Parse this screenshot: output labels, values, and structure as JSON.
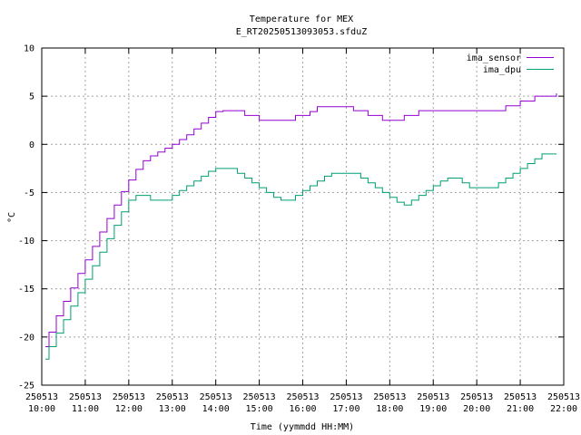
{
  "chart_data": {
    "type": "line",
    "title": "Temperature for MEX",
    "subtitle": "E_RT20250513093053.sfduZ",
    "xlabel": "Time (yymmdd HH:MM)",
    "ylabel": "°C",
    "xlim": [
      "10:00",
      "22:00"
    ],
    "ylim": [
      -25,
      10
    ],
    "grid": true,
    "legend_position": "top-right",
    "x_ticks": [
      {
        "date": "250513",
        "time": "10:00"
      },
      {
        "date": "250513",
        "time": "11:00"
      },
      {
        "date": "250513",
        "time": "12:00"
      },
      {
        "date": "250513",
        "time": "13:00"
      },
      {
        "date": "250513",
        "time": "14:00"
      },
      {
        "date": "250513",
        "time": "15:00"
      },
      {
        "date": "250513",
        "time": "16:00"
      },
      {
        "date": "250513",
        "time": "17:00"
      },
      {
        "date": "250513",
        "time": "18:00"
      },
      {
        "date": "250513",
        "time": "19:00"
      },
      {
        "date": "250513",
        "time": "20:00"
      },
      {
        "date": "250513",
        "time": "21:00"
      },
      {
        "date": "250513",
        "time": "22:00"
      }
    ],
    "y_ticks": [
      10,
      5,
      0,
      -5,
      -10,
      -15,
      -20,
      -25
    ],
    "series": [
      {
        "name": "ima_sensor",
        "color": "#9400d3",
        "x": [
          "10:05",
          "10:10",
          "10:20",
          "10:30",
          "10:40",
          "10:50",
          "11:00",
          "11:10",
          "11:20",
          "11:30",
          "11:40",
          "11:50",
          "12:00",
          "12:10",
          "12:20",
          "12:30",
          "12:40",
          "12:50",
          "13:00",
          "13:10",
          "13:20",
          "13:30",
          "13:40",
          "13:50",
          "14:00",
          "14:10",
          "14:20",
          "14:30",
          "14:40",
          "14:50",
          "15:00",
          "15:10",
          "15:20",
          "15:30",
          "15:40",
          "15:50",
          "16:00",
          "16:10",
          "16:20",
          "16:30",
          "16:40",
          "16:50",
          "17:00",
          "17:10",
          "17:20",
          "17:30",
          "17:40",
          "17:50",
          "18:00",
          "18:10",
          "18:20",
          "18:30",
          "18:40",
          "18:50",
          "19:00",
          "19:10",
          "19:20",
          "19:30",
          "19:40",
          "19:50",
          "20:00",
          "20:10",
          "20:20",
          "20:30",
          "20:40",
          "20:50",
          "21:00",
          "21:10",
          "21:20",
          "21:30",
          "21:40",
          "21:50"
        ],
        "y": [
          -21.0,
          -19.5,
          -17.8,
          -16.3,
          -14.9,
          -13.4,
          -12.0,
          -10.6,
          -9.1,
          -7.7,
          -6.3,
          -4.9,
          -3.7,
          -2.6,
          -1.7,
          -1.2,
          -0.8,
          -0.4,
          0.0,
          0.5,
          1.0,
          1.6,
          2.2,
          2.8,
          3.4,
          3.5,
          3.5,
          3.5,
          3.0,
          3.0,
          2.5,
          2.5,
          2.5,
          2.5,
          2.5,
          3.0,
          3.0,
          3.4,
          3.9,
          3.9,
          3.9,
          3.9,
          3.9,
          3.5,
          3.5,
          3.0,
          3.0,
          2.5,
          2.5,
          2.5,
          3.0,
          3.0,
          3.5,
          3.5,
          3.5,
          3.5,
          3.5,
          3.5,
          3.5,
          3.5,
          3.5,
          3.5,
          3.5,
          3.5,
          4.0,
          4.0,
          4.5,
          4.5,
          5.0,
          5.0,
          5.0,
          5.3
        ]
      },
      {
        "name": "ima_dpu",
        "color": "#009e73",
        "x": [
          "10:05",
          "10:10",
          "10:20",
          "10:30",
          "10:40",
          "10:50",
          "11:00",
          "11:10",
          "11:20",
          "11:30",
          "11:40",
          "11:50",
          "12:00",
          "12:10",
          "12:20",
          "12:30",
          "12:40",
          "12:50",
          "13:00",
          "13:10",
          "13:20",
          "13:30",
          "13:40",
          "13:50",
          "14:00",
          "14:10",
          "14:20",
          "14:30",
          "14:40",
          "14:50",
          "15:00",
          "15:10",
          "15:20",
          "15:30",
          "15:40",
          "15:50",
          "16:00",
          "16:10",
          "16:20",
          "16:30",
          "16:40",
          "16:50",
          "17:00",
          "17:10",
          "17:20",
          "17:30",
          "17:40",
          "17:50",
          "18:00",
          "18:10",
          "18:20",
          "18:30",
          "18:40",
          "18:50",
          "19:00",
          "19:10",
          "19:20",
          "19:30",
          "19:40",
          "19:50",
          "20:00",
          "20:10",
          "20:20",
          "20:30",
          "20:40",
          "20:50",
          "21:00",
          "21:10",
          "21:20",
          "21:30",
          "21:40",
          "21:50"
        ],
        "y": [
          -22.3,
          -21.0,
          -19.6,
          -18.2,
          -16.8,
          -15.4,
          -14.0,
          -12.6,
          -11.2,
          -9.8,
          -8.4,
          -7.0,
          -5.8,
          -5.3,
          -5.3,
          -5.8,
          -5.8,
          -5.8,
          -5.3,
          -4.8,
          -4.3,
          -3.8,
          -3.3,
          -2.8,
          -2.5,
          -2.5,
          -2.5,
          -3.0,
          -3.5,
          -4.0,
          -4.5,
          -5.0,
          -5.5,
          -5.8,
          -5.8,
          -5.3,
          -4.8,
          -4.3,
          -3.8,
          -3.3,
          -3.0,
          -3.0,
          -3.0,
          -3.0,
          -3.5,
          -4.0,
          -4.5,
          -5.0,
          -5.5,
          -6.0,
          -6.3,
          -5.8,
          -5.3,
          -4.8,
          -4.3,
          -3.8,
          -3.5,
          -3.5,
          -4.0,
          -4.5,
          -4.5,
          -4.5,
          -4.5,
          -4.0,
          -3.5,
          -3.0,
          -2.5,
          -2.0,
          -1.5,
          -1.0,
          -1.0,
          -1.0
        ]
      }
    ]
  }
}
